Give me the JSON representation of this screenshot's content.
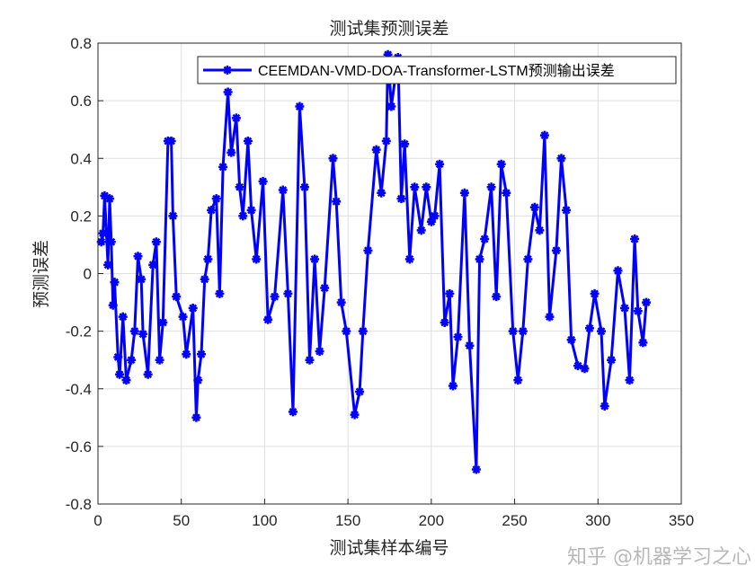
{
  "chart_data": {
    "type": "line",
    "title": "测试集预测误差",
    "xlabel": "测试集样本编号",
    "ylabel": "预测误差",
    "xlim": [
      0,
      350
    ],
    "ylim": [
      -0.8,
      0.8
    ],
    "xticks": [
      0,
      50,
      100,
      150,
      200,
      250,
      300,
      350
    ],
    "yticks": [
      -0.8,
      -0.6,
      -0.4,
      -0.2,
      0,
      0.2,
      0.4,
      0.6,
      0.8
    ],
    "xtick_labels": [
      "0",
      "50",
      "100",
      "150",
      "200",
      "250",
      "300",
      "350"
    ],
    "ytick_labels": [
      "-0.8",
      "-0.6",
      "-0.4",
      "-0.2",
      "0",
      "0.2",
      "0.4",
      "0.6",
      "0.8"
    ],
    "grid": true,
    "legend_position": "top-right",
    "series": [
      {
        "name": "CEEMDAN-VMD-DOA-Transformer-LSTM预测输出误差",
        "color": "#0000ff",
        "marker": "asterisk",
        "x": [
          2,
          3,
          4,
          6,
          7,
          8,
          9,
          10,
          12,
          13,
          15,
          17,
          20,
          22,
          24,
          26,
          27,
          30,
          33,
          35,
          37,
          39,
          42,
          44,
          45,
          47,
          51,
          53,
          57,
          59,
          60,
          62,
          64,
          66,
          68,
          71,
          73,
          75,
          78,
          80,
          83,
          85,
          87,
          90,
          92,
          95,
          99,
          102,
          106,
          111,
          114,
          117,
          121,
          124,
          127,
          130,
          133,
          136,
          141,
          143,
          146,
          149,
          154,
          157,
          159,
          162,
          167,
          170,
          173,
          174,
          176,
          180,
          182,
          184,
          187,
          190,
          194,
          197,
          200,
          202,
          205,
          208,
          211,
          213,
          216,
          220,
          223,
          227,
          229,
          232,
          236,
          239,
          242,
          245,
          249,
          252,
          255,
          258,
          262,
          265,
          268,
          271,
          275,
          278,
          281,
          284,
          288,
          292,
          295,
          298,
          302,
          304,
          308,
          312,
          316,
          319,
          322,
          324,
          327,
          329
        ],
        "y": [
          0.11,
          0.14,
          0.27,
          0.03,
          0.26,
          0.11,
          -0.11,
          -0.03,
          -0.29,
          -0.35,
          -0.15,
          -0.37,
          -0.3,
          -0.2,
          0.06,
          -0.02,
          -0.21,
          -0.35,
          0.03,
          0.11,
          -0.3,
          -0.17,
          0.46,
          0.46,
          0.2,
          -0.08,
          -0.15,
          -0.28,
          -0.12,
          -0.5,
          -0.37,
          -0.28,
          -0.02,
          0.05,
          0.22,
          0.26,
          -0.07,
          0.37,
          0.63,
          0.42,
          0.54,
          0.3,
          0.2,
          0.46,
          0.22,
          0.05,
          0.32,
          -0.16,
          -0.08,
          0.29,
          -0.07,
          -0.48,
          0.58,
          0.3,
          -0.3,
          0.05,
          -0.27,
          -0.05,
          0.4,
          0.25,
          -0.1,
          -0.2,
          -0.49,
          -0.41,
          -0.2,
          0.08,
          0.43,
          0.28,
          0.46,
          0.76,
          0.58,
          0.75,
          0.26,
          0.45,
          0.05,
          0.3,
          0.15,
          0.3,
          0.18,
          0.2,
          0.38,
          -0.17,
          -0.07,
          -0.39,
          -0.22,
          0.28,
          -0.25,
          -0.68,
          0.05,
          0.12,
          0.3,
          -0.08,
          0.38,
          0.28,
          -0.2,
          -0.37,
          -0.2,
          0.05,
          0.23,
          0.15,
          0.48,
          -0.15,
          0.08,
          0.4,
          0.22,
          -0.23,
          -0.32,
          -0.33,
          -0.19,
          -0.07,
          -0.2,
          -0.46,
          -0.3,
          0.01,
          -0.12,
          -0.37,
          0.12,
          -0.13,
          -0.24,
          -0.1
        ]
      }
    ]
  },
  "watermark": "知乎 @机器学习之心"
}
